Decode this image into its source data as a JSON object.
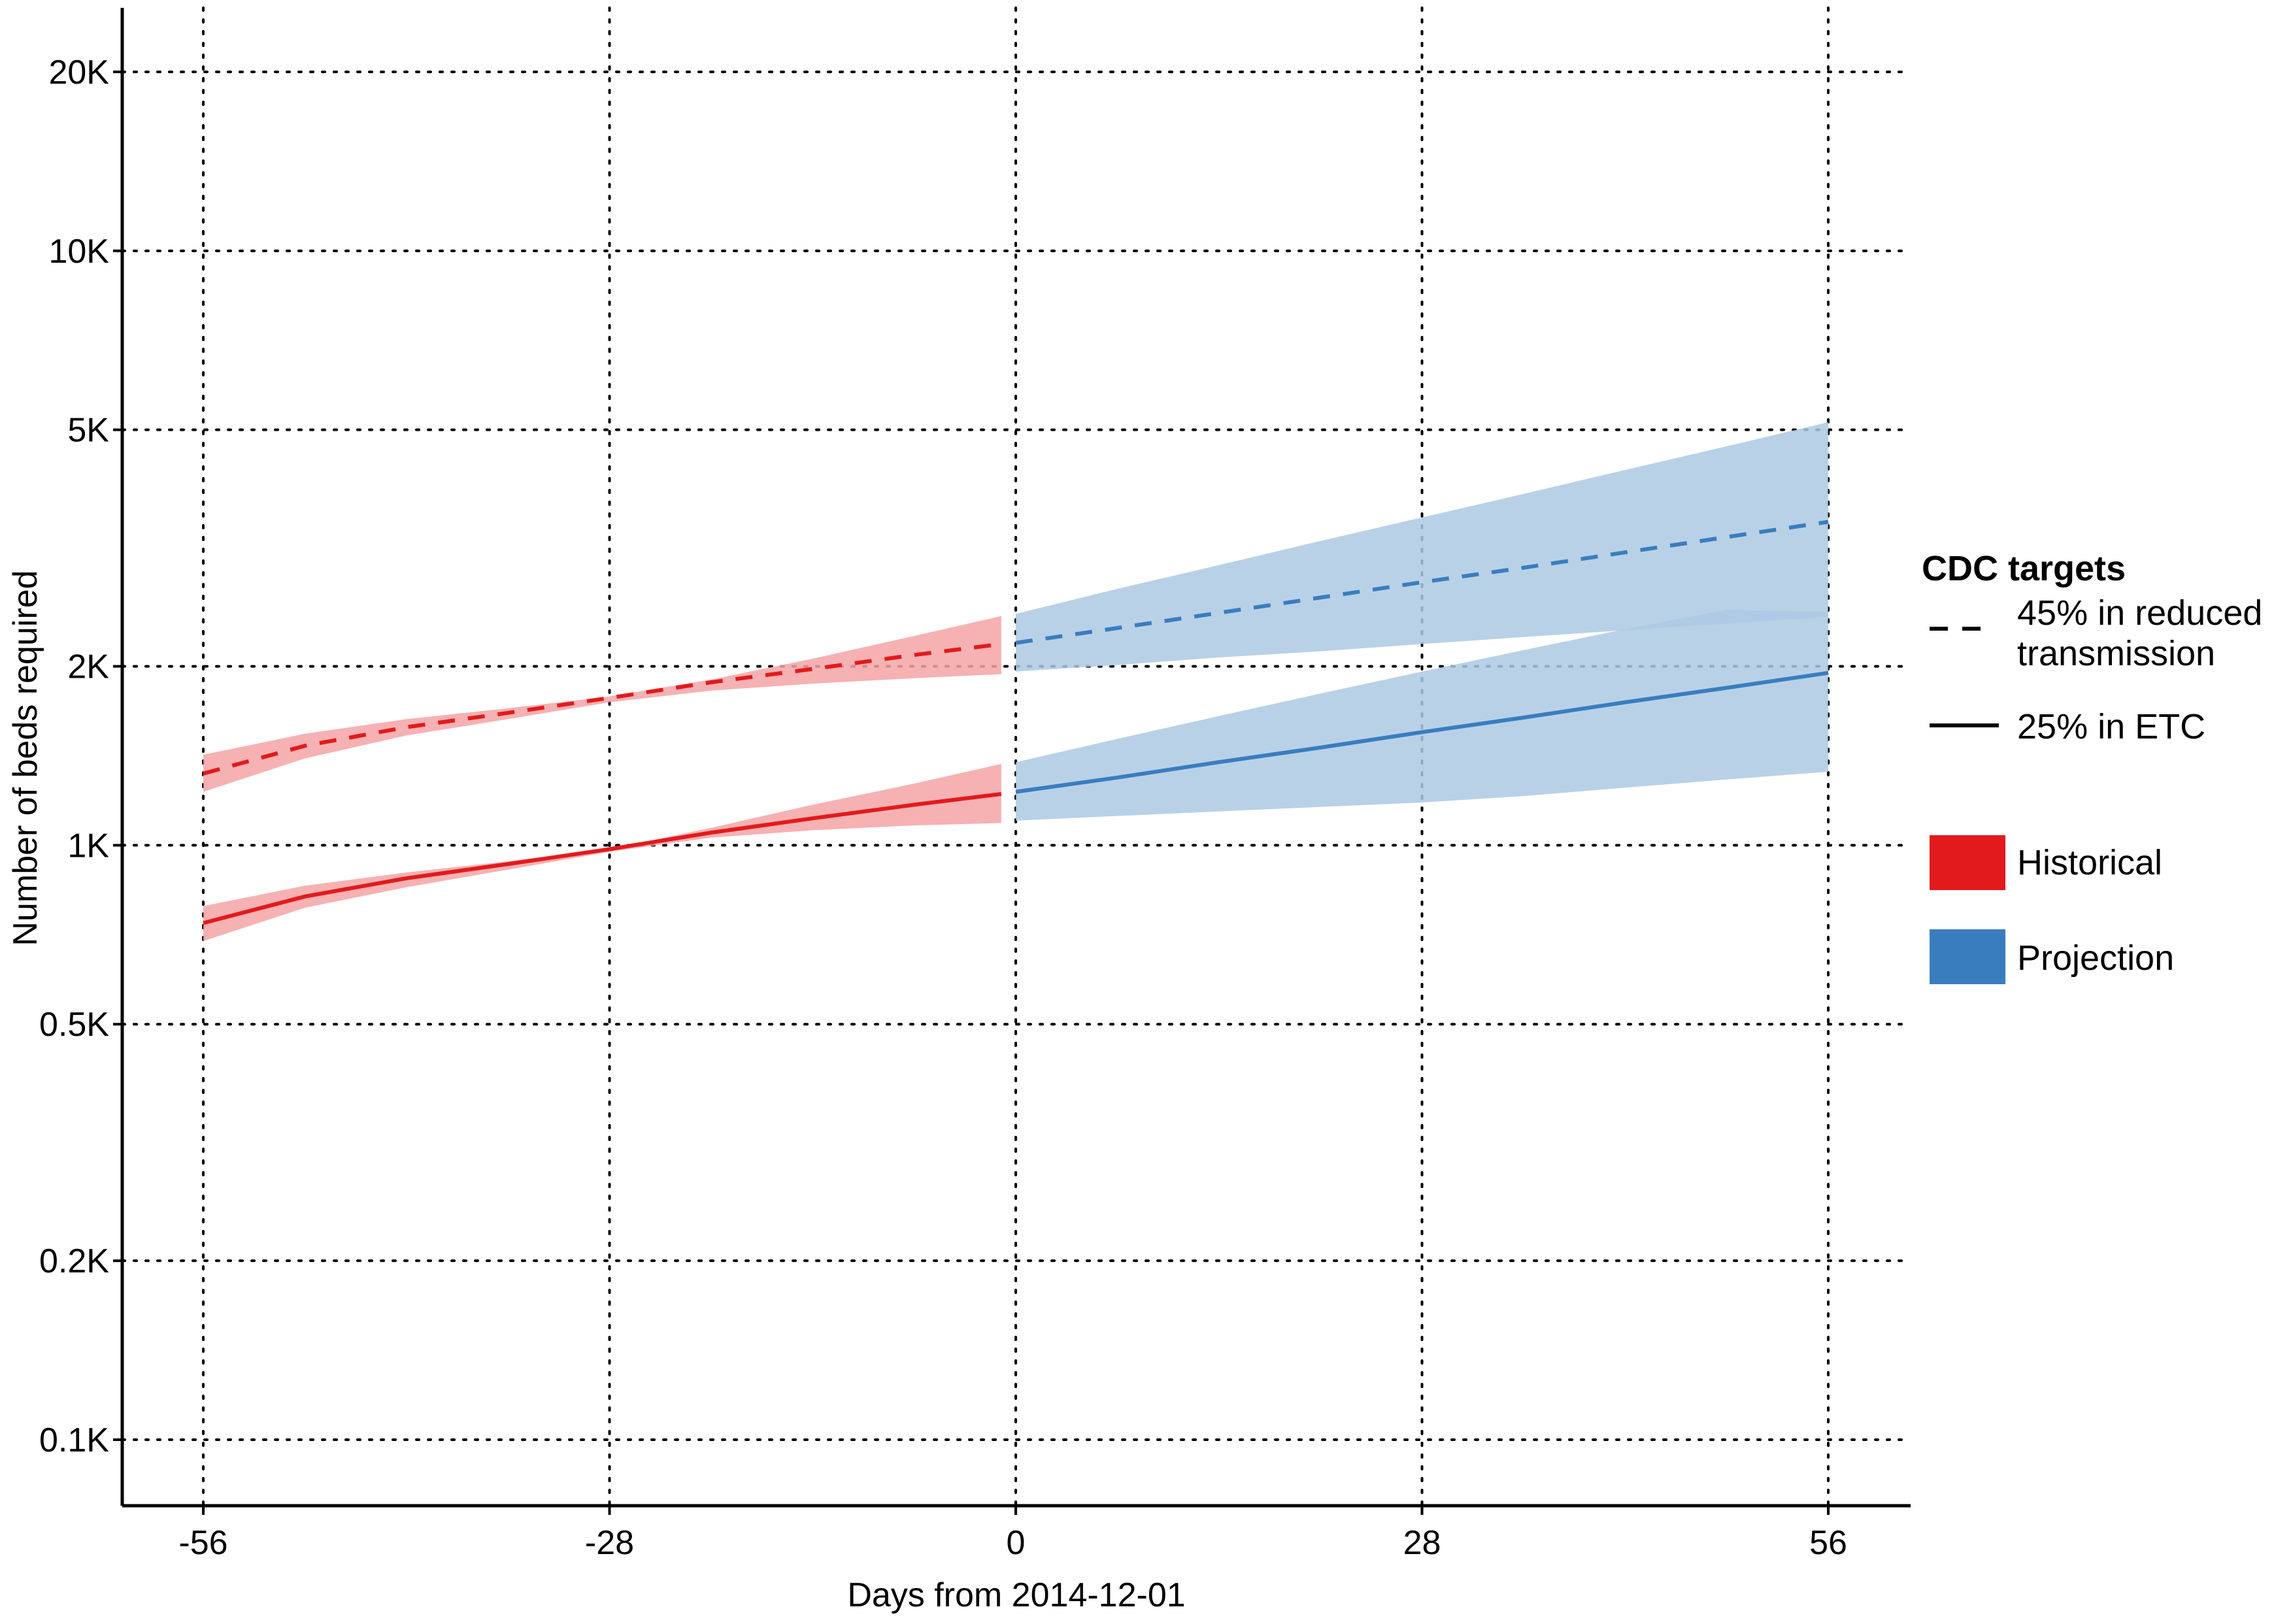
{
  "chart_data": {
    "type": "line",
    "title": "",
    "xlabel": "Days from 2014-12-01",
    "ylabel": "Number of beds required",
    "y_scale": "log",
    "xlim": [
      -60,
      60
    ],
    "ylim": [
      80,
      25000
    ],
    "grid": "dotted",
    "x_ticks": [
      {
        "value": -56,
        "label": "-56"
      },
      {
        "value": -28,
        "label": "-28"
      },
      {
        "value": 0,
        "label": "0"
      },
      {
        "value": 28,
        "label": "28"
      },
      {
        "value": 56,
        "label": "56"
      }
    ],
    "y_ticks": [
      {
        "value": 100,
        "label": "0.1K"
      },
      {
        "value": 200,
        "label": "0.2K"
      },
      {
        "value": 500,
        "label": "0.5K"
      },
      {
        "value": 1000,
        "label": "1K"
      },
      {
        "value": 2000,
        "label": "2K"
      },
      {
        "value": 5000,
        "label": "5K"
      },
      {
        "value": 10000,
        "label": "10K"
      },
      {
        "value": 20000,
        "label": "20K"
      }
    ],
    "legend": {
      "position": "right",
      "linetype_title": "CDC targets",
      "linetype_entries": [
        {
          "style": "dashed",
          "label_lines": [
            "45% in reduced",
            "transmission"
          ]
        },
        {
          "style": "solid",
          "label_lines": [
            "25% in ETC"
          ]
        }
      ],
      "color_entries": [
        {
          "label": "Historical",
          "color": "#e31a1c"
        },
        {
          "label": "Projection",
          "color": "#3a7dbf"
        }
      ]
    },
    "colors": {
      "historical_line": "#e31a1c",
      "historical_band": "#f4a3a6",
      "projection_line": "#3a7dbf",
      "projection_band": "#adc9e3"
    },
    "series": [
      {
        "group": "Historical",
        "target": "45% in reduced transmission",
        "linetype": "dashed",
        "x": [
          -56,
          -49,
          -42,
          -35,
          -28,
          -21,
          -14,
          -7,
          -1
        ],
        "y": [
          1320,
          1470,
          1580,
          1670,
          1770,
          1880,
          1980,
          2090,
          2180
        ],
        "lower": [
          1230,
          1400,
          1530,
          1630,
          1740,
          1820,
          1870,
          1910,
          1940
        ],
        "upper": [
          1420,
          1540,
          1630,
          1700,
          1780,
          1900,
          2060,
          2250,
          2430
        ]
      },
      {
        "group": "Historical",
        "target": "25% in ETC",
        "linetype": "solid",
        "x": [
          -56,
          -49,
          -42,
          -35,
          -28,
          -21,
          -14,
          -7,
          -1
        ],
        "y": [
          740,
          820,
          880,
          930,
          985,
          1050,
          1110,
          1170,
          1220
        ],
        "lower": [
          690,
          785,
          850,
          910,
          975,
          1030,
          1060,
          1080,
          1090
        ],
        "upper": [
          790,
          855,
          900,
          940,
          985,
          1070,
          1170,
          1270,
          1370
        ]
      },
      {
        "group": "Projection",
        "target": "45% in reduced transmission",
        "linetype": "dashed",
        "x": [
          0,
          7,
          14,
          21,
          28,
          35,
          42,
          49,
          56
        ],
        "y": [
          2190,
          2320,
          2460,
          2610,
          2770,
          2930,
          3110,
          3300,
          3500
        ],
        "lower": [
          1960,
          2010,
          2070,
          2120,
          2180,
          2240,
          2300,
          2360,
          2420
        ],
        "upper": [
          2450,
          2700,
          2960,
          3250,
          3560,
          3900,
          4280,
          4690,
          5150
        ]
      },
      {
        "group": "Projection",
        "target": "25% in ETC",
        "linetype": "solid",
        "x": [
          0,
          7,
          14,
          21,
          28,
          35,
          42,
          49,
          56
        ],
        "y": [
          1230,
          1300,
          1380,
          1460,
          1550,
          1640,
          1740,
          1840,
          1950
        ],
        "lower": [
          1100,
          1120,
          1140,
          1160,
          1180,
          1210,
          1250,
          1290,
          1330
        ],
        "upper": [
          1380,
          1510,
          1650,
          1800,
          1960,
          2130,
          2310,
          2490,
          2470
        ]
      }
    ]
  }
}
